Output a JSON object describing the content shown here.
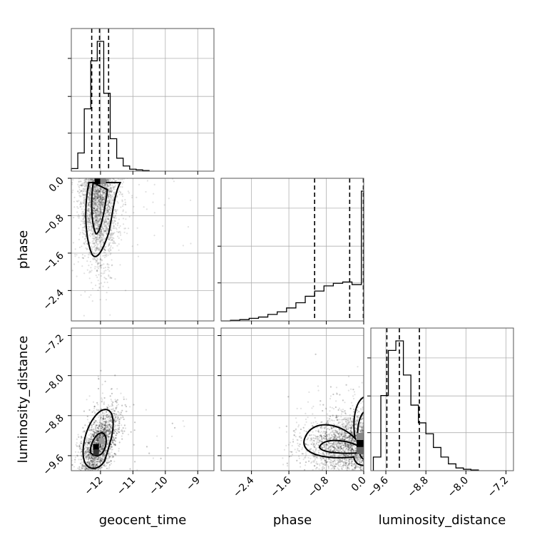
{
  "chart_data": {
    "type": "corner",
    "parameters": [
      "geocent_time",
      "phase",
      "luminosity_distance"
    ],
    "axis_ranges": {
      "geocent_time": [
        -12.9,
        -8.5
      ],
      "phase": [
        -3.05,
        0.0
      ],
      "luminosity_distance": [
        -9.9,
        -7.05
      ]
    },
    "ticks": {
      "geocent_time": [
        {
          "value": -12,
          "label": "−12"
        },
        {
          "value": -11,
          "label": "−11"
        },
        {
          "value": -10,
          "label": "−10"
        },
        {
          "value": -9,
          "label": "−9"
        }
      ],
      "phase": [
        {
          "value": -2.4,
          "label": "−2.4"
        },
        {
          "value": -1.6,
          "label": "−1.6"
        },
        {
          "value": -0.8,
          "label": "−0.8"
        },
        {
          "value": 0.0,
          "label": "0.0"
        }
      ],
      "luminosity_distance": [
        {
          "value": -9.6,
          "label": "−9.6"
        },
        {
          "value": -8.8,
          "label": "−8.8"
        },
        {
          "value": -8.0,
          "label": "−8.0"
        },
        {
          "value": -7.2,
          "label": "−7.2"
        }
      ]
    },
    "grid": true,
    "histograms": {
      "geocent_time": {
        "edges": [
          -12.9,
          -12.7,
          -12.5,
          -12.3,
          -12.1,
          -11.9,
          -11.7,
          -11.5,
          -11.3,
          -11.1,
          -10.9,
          -10.7,
          -10.5
        ],
        "counts": [
          2,
          14,
          48,
          85,
          100,
          60,
          25,
          10,
          4,
          1.5,
          1,
          0.5
        ],
        "quantiles": [
          -12.27,
          -12.03,
          -11.75
        ]
      },
      "phase": {
        "edges": [
          -3.05,
          -2.85,
          -2.65,
          -2.45,
          -2.25,
          -2.05,
          -1.85,
          -1.65,
          -1.45,
          -1.25,
          -1.05,
          -0.85,
          -0.65,
          -0.45,
          -0.25,
          -0.05,
          0.0
        ],
        "counts": [
          0,
          0.5,
          1,
          2,
          3,
          5,
          7,
          10,
          14,
          19,
          23,
          27,
          29,
          30,
          28,
          100
        ],
        "quantiles": [
          -1.05,
          -0.3,
          0.0
        ]
      },
      "luminosity_distance": {
        "edges": [
          -9.85,
          -9.7,
          -9.55,
          -9.4,
          -9.25,
          -9.1,
          -8.95,
          -8.8,
          -8.65,
          -8.5,
          -8.35,
          -8.2,
          -8.05,
          -7.9,
          -7.75
        ],
        "counts": [
          10,
          55,
          88,
          95,
          70,
          48,
          35,
          27,
          17,
          10,
          5,
          2,
          1,
          0.5
        ],
        "quantiles": [
          -9.58,
          -9.33,
          -8.93
        ]
      }
    },
    "scatter": {
      "phase_vs_geocent_time": {
        "x_center": -12.05,
        "x_spread": 0.25,
        "y_center": -0.5,
        "y_spread": 0.9,
        "n": 2500
      },
      "luminosity_distance_vs_geocent_time": {
        "x_center": -12.05,
        "x_spread": 0.3,
        "y_center": -9.4,
        "y_spread": 0.3,
        "n": 2500
      },
      "luminosity_distance_vs_phase": {
        "x_center": -0.4,
        "x_spread": 0.6,
        "y_center": -9.4,
        "y_spread": 0.3,
        "n": 2500
      }
    }
  }
}
